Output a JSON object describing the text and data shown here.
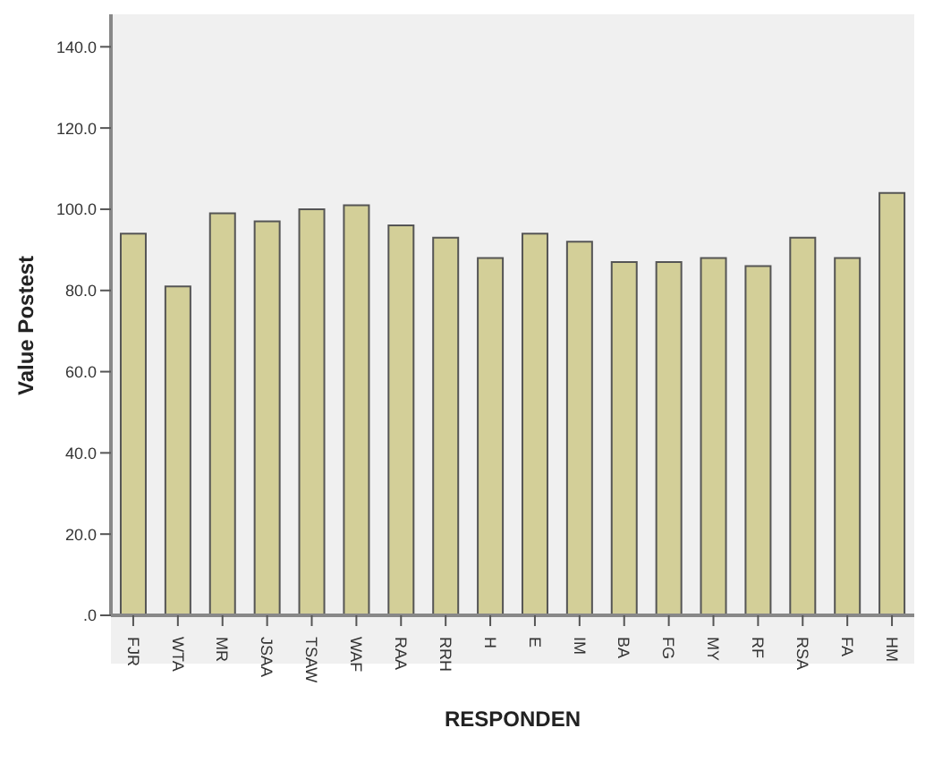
{
  "chart_data": {
    "type": "bar",
    "xlabel": "RESPONDEN",
    "ylabel": "Value Postest",
    "categories": [
      "FJR",
      "WTA",
      "MR",
      "JSAA",
      "TSAW",
      "WAF",
      "RAA",
      "RRH",
      "H",
      "E",
      "IM",
      "BA",
      "FG",
      "MY",
      "RF",
      "RSA",
      "FA",
      "HM"
    ],
    "values": [
      94,
      81,
      99,
      97,
      100,
      101,
      96,
      93,
      88,
      94,
      92,
      87,
      87,
      88,
      86,
      93,
      88,
      104
    ],
    "color": "#d3cf98",
    "ylim": [
      0,
      148
    ],
    "yticks": [
      {
        "value": 0,
        "label": ".0"
      },
      {
        "value": 20,
        "label": "20.0"
      },
      {
        "value": 40,
        "label": "40.0"
      },
      {
        "value": 60,
        "label": "60.0"
      },
      {
        "value": 80,
        "label": "80.0"
      },
      {
        "value": 100,
        "label": "100.0"
      },
      {
        "value": 120,
        "label": "120.0"
      },
      {
        "value": 140,
        "label": "140.0"
      }
    ],
    "grid": false,
    "legend": false
  }
}
